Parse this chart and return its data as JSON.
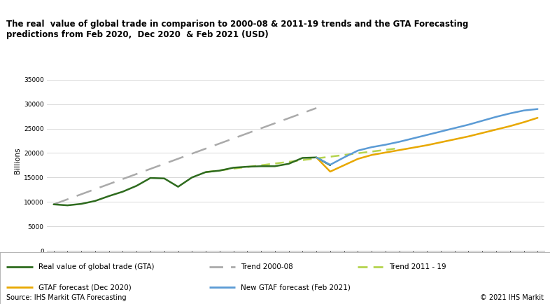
{
  "title": "The real  value of global trade in comparison to 2000-08 & 2011-19 trends and the GTA Forecasting\npredictions from Feb 2020,  Dec 2020  & Feb 2021 (USD)",
  "ylabel": "Billions",
  "source": "Source: IHS Markit GTA Forecasting",
  "copyright": "© 2021 IHS Markit",
  "title_bg": "#c0c0c0",
  "plot_bg": "#ffffff",
  "fig_bg": "#ffffff",
  "border_color": "#aaaaaa",
  "ylim": [
    0,
    37000
  ],
  "yticks": [
    0,
    5000,
    10000,
    15000,
    20000,
    25000,
    30000,
    35000
  ],
  "xlim": [
    1999.5,
    2035.5
  ],
  "real_trade": {
    "years": [
      2000,
      2001,
      2002,
      2003,
      2004,
      2005,
      2006,
      2007,
      2008,
      2009,
      2010,
      2011,
      2012,
      2013,
      2014,
      2015,
      2016,
      2017,
      2018,
      2019,
      2020
    ],
    "values": [
      9500,
      9300,
      9600,
      10200,
      11200,
      12100,
      13300,
      14900,
      14800,
      13100,
      15000,
      16100,
      16400,
      17000,
      17200,
      17300,
      17300,
      17800,
      19000,
      19100,
      17500
    ],
    "color": "#2e6b1e",
    "linewidth": 1.8,
    "label": "Real value of global trade (GTA)"
  },
  "trend_2000_08": {
    "years": [
      2000,
      2019
    ],
    "values": [
      9500,
      29200
    ],
    "color": "#aaaaaa",
    "linewidth": 1.8,
    "label": "Trend 2000-08"
  },
  "trend_2011_19": {
    "years": [
      2011,
      2025
    ],
    "values": [
      16100,
      21000
    ],
    "color": "#b5d44e",
    "linewidth": 1.8,
    "label": "Trend 2011 - 19"
  },
  "gtaf_dec2020": {
    "years": [
      2019,
      2020,
      2021,
      2022,
      2023,
      2024,
      2025,
      2026,
      2027,
      2028,
      2029,
      2030,
      2031,
      2032,
      2033,
      2034,
      2035
    ],
    "values": [
      19100,
      16200,
      17500,
      18800,
      19600,
      20100,
      20600,
      21100,
      21600,
      22200,
      22800,
      23400,
      24100,
      24800,
      25500,
      26300,
      27200
    ],
    "color": "#e8a800",
    "linewidth": 1.8,
    "label": "GTAF forecast (Dec 2020)"
  },
  "new_gtaf_feb2021": {
    "years": [
      2019,
      2020,
      2021,
      2022,
      2023,
      2024,
      2025,
      2026,
      2027,
      2028,
      2029,
      2030,
      2031,
      2032,
      2033,
      2034,
      2035
    ],
    "values": [
      19100,
      17600,
      19100,
      20500,
      21200,
      21700,
      22300,
      23000,
      23700,
      24400,
      25100,
      25800,
      26600,
      27400,
      28100,
      28700,
      29000
    ],
    "color": "#5b9bd5",
    "linewidth": 1.8,
    "label": "New GTAF forecast (Feb 2021)"
  },
  "title_fontsize": 8.5,
  "tick_fontsize": 6.5,
  "ylabel_fontsize": 7.5,
  "legend_fontsize": 7.5,
  "source_fontsize": 7.0,
  "grid_color": "#d8d8d8",
  "spine_color": "#aaaaaa"
}
